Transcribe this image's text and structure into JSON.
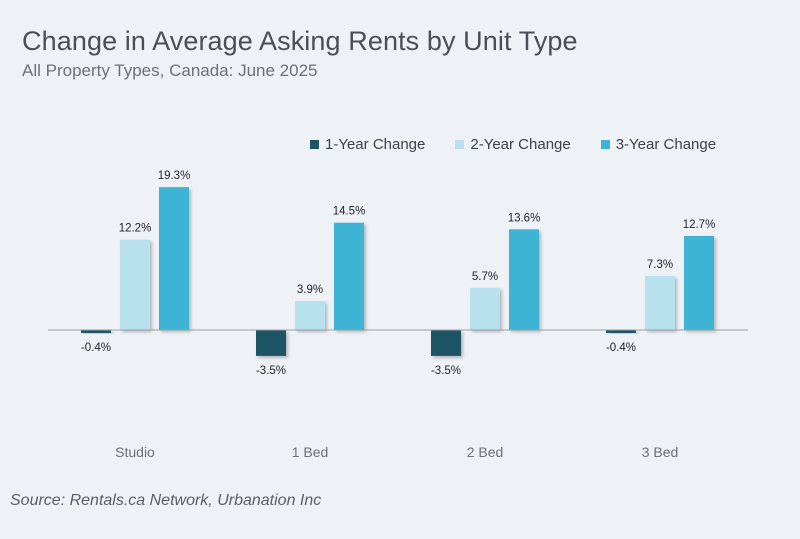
{
  "header": {
    "title": "Change in Average Asking Rents by Unit Type",
    "subtitle": "All Property Types, Canada: June 2025"
  },
  "source": "Source: Rentals.ca Network, Urbanation Inc",
  "colors": {
    "1-Year Change": "#1d5466",
    "2-Year Change": "#b8e1ee",
    "3-Year Change": "#3db4d4"
  },
  "chart_data": {
    "type": "bar",
    "categories": [
      "Studio",
      "1 Bed",
      "2 Bed",
      "3 Bed"
    ],
    "series": [
      {
        "name": "1-Year Change",
        "values": [
          -0.4,
          -3.5,
          -3.5,
          -0.4
        ]
      },
      {
        "name": "2-Year Change",
        "values": [
          12.2,
          3.9,
          5.7,
          7.3
        ]
      },
      {
        "name": "3-Year Change",
        "values": [
          19.3,
          14.5,
          13.6,
          12.7
        ]
      }
    ],
    "data_labels": [
      [
        "-0.4%",
        "-3.5%",
        "-3.5%",
        "-0.4%"
      ],
      [
        "12.2%",
        "3.9%",
        "5.7%",
        "7.3%"
      ],
      [
        "19.3%",
        "14.5%",
        "13.6%",
        "12.7%"
      ]
    ],
    "legend_position": "top-right",
    "grid": false,
    "title": "Change in Average Asking Rents by Unit Type",
    "subtitle": "All Property Types, Canada: June 2025"
  }
}
